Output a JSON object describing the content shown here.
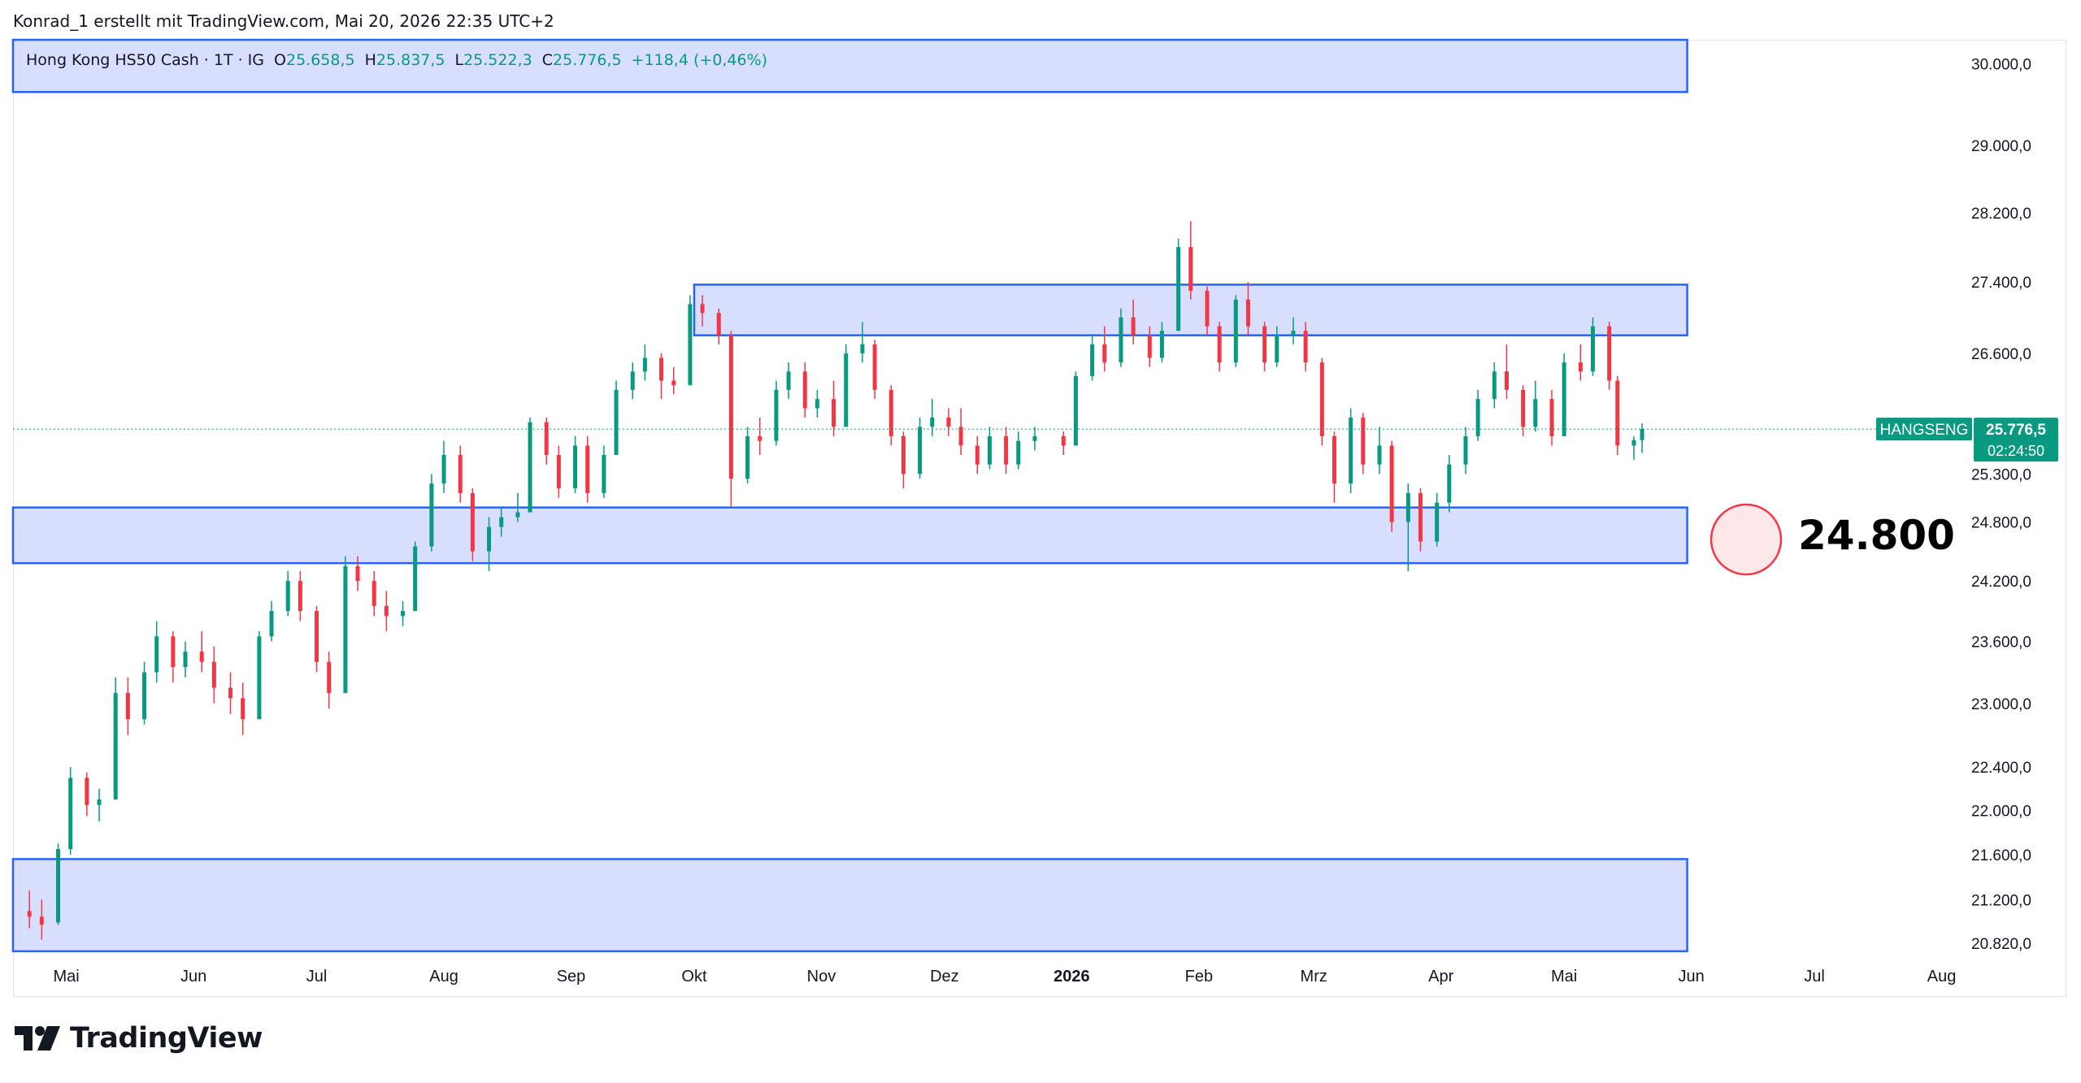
{
  "header": {
    "credit": "Konrad_1 erstellt mit TradingView.com, Mai 20, 2026 22:35 UTC+2"
  },
  "legend": {
    "symbol": "Hong Kong HS50 Cash · 1T · IG",
    "open_label": "O",
    "open": "25.658,5",
    "high_label": "H",
    "high": "25.837,5",
    "low_label": "L",
    "low": "25.522,3",
    "close_label": "C",
    "close": "25.776,5",
    "change": "+118,4 (+0,46%)"
  },
  "annotation": {
    "label": "24.800",
    "circle_color": "#f23645"
  },
  "price_tag": {
    "symbol": "HANGSENG",
    "price": "25.776,5",
    "countdown": "02:24:50",
    "color": "#089981"
  },
  "logo": {
    "text": "TradingView",
    "mark": "tv-logo-icon"
  },
  "colors": {
    "up": "#089981",
    "down": "#f23645",
    "zone_fill": "#d6dcfd",
    "zone_border": "#2962ff",
    "grid": "#f0f3fa"
  },
  "chart_data": {
    "type": "candlestick",
    "title": "",
    "symbol": "Hong Kong HS50 Cash",
    "timeframe": "1T",
    "yaxis": {
      "ticks": [
        30000,
        29000,
        28200,
        27400,
        26600,
        25300,
        24800,
        24200,
        23600,
        23000,
        22400,
        22000,
        21600,
        21200,
        20820
      ],
      "tick_labels": [
        "30.000,0",
        "29.000,0",
        "28.200,0",
        "27.400,0",
        "26.600,0",
        "25.300,0",
        "24.800,0",
        "24.200,0",
        "23.600,0",
        "23.000,0",
        "22.400,0",
        "22.000,0",
        "21.600,0",
        "21.200,0",
        "20.820,0"
      ],
      "range": [
        20700,
        30300
      ],
      "scale": "log"
    },
    "xaxis": {
      "labels": [
        "Mai",
        "Jun",
        "Jul",
        "Aug",
        "Sep",
        "Okt",
        "Nov",
        "Dez",
        "2026",
        "Feb",
        "Mrz",
        "Apr",
        "Mai",
        "Jun",
        "Jul",
        "Aug"
      ],
      "label_dates": [
        "2025-05-01",
        "2025-06-01",
        "2025-07-01",
        "2025-08-01",
        "2025-09-01",
        "2025-10-01",
        "2025-11-01",
        "2025-12-01",
        "2026-01-01",
        "2026-02-01",
        "2026-03-01",
        "2026-04-01",
        "2026-05-01",
        "2026-06-01",
        "2026-07-01",
        "2026-08-01"
      ],
      "range": [
        "2025-04-18",
        "2026-08-31"
      ],
      "bold_label": "2026"
    },
    "zones": [
      {
        "start": "2025-04-18",
        "end": "2026-05-31",
        "low": 29650,
        "high": 30300
      },
      {
        "start": "2025-10-01",
        "end": "2026-05-31",
        "low": 26800,
        "high": 27370
      },
      {
        "start": "2025-04-18",
        "end": "2026-05-31",
        "low": 24380,
        "high": 24950
      },
      {
        "start": "2025-04-18",
        "end": "2026-05-31",
        "low": 20750,
        "high": 21560
      }
    ],
    "last_price": 25776.5,
    "candles": [
      [
        "2025-04-22",
        21100,
        21280,
        20950,
        21050
      ],
      [
        "2025-04-25",
        21050,
        21200,
        20850,
        20980
      ],
      [
        "2025-04-29",
        21000,
        21700,
        20980,
        21650
      ],
      [
        "2025-05-02",
        21650,
        22400,
        21600,
        22300
      ],
      [
        "2025-05-06",
        22300,
        22350,
        21950,
        22050
      ],
      [
        "2025-05-09",
        22050,
        22200,
        21900,
        22100
      ],
      [
        "2025-05-13",
        22100,
        23250,
        22100,
        23100
      ],
      [
        "2025-05-16",
        23100,
        23250,
        22700,
        22850
      ],
      [
        "2025-05-20",
        22850,
        23400,
        22800,
        23300
      ],
      [
        "2025-05-23",
        23300,
        23800,
        23200,
        23650
      ],
      [
        "2025-05-27",
        23650,
        23700,
        23200,
        23350
      ],
      [
        "2025-05-30",
        23350,
        23600,
        23250,
        23500
      ],
      [
        "2025-06-03",
        23500,
        23700,
        23300,
        23400
      ],
      [
        "2025-06-06",
        23400,
        23550,
        23000,
        23150
      ],
      [
        "2025-06-10",
        23150,
        23300,
        22900,
        23050
      ],
      [
        "2025-06-13",
        23050,
        23200,
        22700,
        22850
      ],
      [
        "2025-06-17",
        22850,
        23700,
        22850,
        23650
      ],
      [
        "2025-06-20",
        23650,
        24000,
        23600,
        23900
      ],
      [
        "2025-06-24",
        23900,
        24300,
        23850,
        24200
      ],
      [
        "2025-06-27",
        24200,
        24300,
        23800,
        23900
      ],
      [
        "2025-07-01",
        23900,
        23950,
        23300,
        23400
      ],
      [
        "2025-07-04",
        23400,
        23500,
        22950,
        23100
      ],
      [
        "2025-07-08",
        23100,
        24450,
        23100,
        24350
      ],
      [
        "2025-07-11",
        24350,
        24450,
        24100,
        24200
      ],
      [
        "2025-07-15",
        24200,
        24300,
        23850,
        23950
      ],
      [
        "2025-07-18",
        23950,
        24100,
        23700,
        23850
      ],
      [
        "2025-07-22",
        23850,
        24000,
        23750,
        23900
      ],
      [
        "2025-07-25",
        23900,
        24600,
        23900,
        24550
      ],
      [
        "2025-07-29",
        24550,
        25300,
        24500,
        25200
      ],
      [
        "2025-08-01",
        25200,
        25650,
        25100,
        25500
      ],
      [
        "2025-08-05",
        25500,
        25600,
        25000,
        25100
      ],
      [
        "2025-08-08",
        25100,
        25150,
        24400,
        24500
      ],
      [
        "2025-08-12",
        24500,
        24850,
        24300,
        24750
      ],
      [
        "2025-08-15",
        24750,
        24950,
        24650,
        24850
      ],
      [
        "2025-08-19",
        24850,
        25100,
        24800,
        24900
      ],
      [
        "2025-08-22",
        24900,
        25900,
        24900,
        25850
      ],
      [
        "2025-08-26",
        25850,
        25900,
        25400,
        25500
      ],
      [
        "2025-08-29",
        25500,
        25600,
        25050,
        25150
      ],
      [
        "2025-09-02",
        25150,
        25700,
        25100,
        25600
      ],
      [
        "2025-09-05",
        25600,
        25700,
        25000,
        25100
      ],
      [
        "2025-09-09",
        25100,
        25600,
        25050,
        25500
      ],
      [
        "2025-09-12",
        25500,
        26300,
        25500,
        26200
      ],
      [
        "2025-09-16",
        26200,
        26500,
        26100,
        26400
      ],
      [
        "2025-09-19",
        26400,
        26700,
        26300,
        26550
      ],
      [
        "2025-09-23",
        26550,
        26600,
        26100,
        26300
      ],
      [
        "2025-09-26",
        26300,
        26450,
        26150,
        26250
      ],
      [
        "2025-09-30",
        26250,
        27250,
        26250,
        27150
      ],
      [
        "2025-10-03",
        27150,
        27250,
        26900,
        27050
      ],
      [
        "2025-10-07",
        27050,
        27100,
        26700,
        26800
      ],
      [
        "2025-10-10",
        26800,
        26850,
        24950,
        25250
      ],
      [
        "2025-10-14",
        25250,
        25800,
        25200,
        25700
      ],
      [
        "2025-10-17",
        25700,
        25900,
        25500,
        25650
      ],
      [
        "2025-10-21",
        25650,
        26300,
        25600,
        26200
      ],
      [
        "2025-10-24",
        26200,
        26500,
        26100,
        26400
      ],
      [
        "2025-10-28",
        26400,
        26500,
        25900,
        26000
      ],
      [
        "2025-10-31",
        26000,
        26200,
        25900,
        26100
      ],
      [
        "2025-11-04",
        26100,
        26300,
        25700,
        25800
      ],
      [
        "2025-11-07",
        25800,
        26700,
        25800,
        26600
      ],
      [
        "2025-11-11",
        26600,
        26950,
        26500,
        26700
      ],
      [
        "2025-11-14",
        26700,
        26750,
        26100,
        26200
      ],
      [
        "2025-11-18",
        26200,
        26250,
        25600,
        25700
      ],
      [
        "2025-11-21",
        25700,
        25750,
        25150,
        25300
      ],
      [
        "2025-11-25",
        25300,
        25900,
        25250,
        25800
      ],
      [
        "2025-11-28",
        25800,
        26100,
        25700,
        25900
      ],
      [
        "2025-12-02",
        25900,
        26000,
        25700,
        25800
      ],
      [
        "2025-12-05",
        25800,
        26000,
        25500,
        25600
      ],
      [
        "2025-12-09",
        25600,
        25700,
        25300,
        25400
      ],
      [
        "2025-12-12",
        25400,
        25800,
        25350,
        25700
      ],
      [
        "2025-12-16",
        25700,
        25800,
        25300,
        25400
      ],
      [
        "2025-12-19",
        25400,
        25750,
        25350,
        25650
      ],
      [
        "2025-12-23",
        25650,
        25800,
        25550,
        25700
      ],
      [
        "2025-12-30",
        25700,
        25750,
        25500,
        25600
      ],
      [
        "2026-01-02",
        25600,
        26400,
        25600,
        26350
      ],
      [
        "2026-01-06",
        26350,
        26800,
        26300,
        26700
      ],
      [
        "2026-01-09",
        26700,
        26900,
        26400,
        26500
      ],
      [
        "2026-01-13",
        26500,
        27100,
        26450,
        27000
      ],
      [
        "2026-01-16",
        27000,
        27200,
        26700,
        26800
      ],
      [
        "2026-01-20",
        26800,
        26900,
        26450,
        26550
      ],
      [
        "2026-01-23",
        26550,
        26950,
        26500,
        26850
      ],
      [
        "2026-01-27",
        26850,
        27900,
        26850,
        27800
      ],
      [
        "2026-01-30",
        27800,
        28100,
        27200,
        27300
      ],
      [
        "2026-02-03",
        27300,
        27350,
        26800,
        26900
      ],
      [
        "2026-02-06",
        26900,
        26950,
        26400,
        26500
      ],
      [
        "2026-02-10",
        26500,
        27250,
        26450,
        27200
      ],
      [
        "2026-02-13",
        27200,
        27400,
        26800,
        26900
      ],
      [
        "2026-02-17",
        26900,
        26950,
        26400,
        26500
      ],
      [
        "2026-02-20",
        26500,
        26900,
        26450,
        26800
      ],
      [
        "2026-02-24",
        26800,
        27000,
        26700,
        26850
      ],
      [
        "2026-02-27",
        26850,
        26950,
        26400,
        26500
      ],
      [
        "2026-03-03",
        26500,
        26550,
        25600,
        25700
      ],
      [
        "2026-03-06",
        25700,
        25750,
        25000,
        25200
      ],
      [
        "2026-03-10",
        25200,
        26000,
        25100,
        25900
      ],
      [
        "2026-03-13",
        25900,
        25950,
        25300,
        25400
      ],
      [
        "2026-03-17",
        25400,
        25800,
        25300,
        25600
      ],
      [
        "2026-03-20",
        25600,
        25650,
        24700,
        24800
      ],
      [
        "2026-03-24",
        24800,
        25200,
        24300,
        25100
      ],
      [
        "2026-03-27",
        25100,
        25150,
        24500,
        24600
      ],
      [
        "2026-03-31",
        24600,
        25100,
        24550,
        25000
      ],
      [
        "2026-04-03",
        25000,
        25500,
        24900,
        25400
      ],
      [
        "2026-04-07",
        25400,
        25800,
        25300,
        25700
      ],
      [
        "2026-04-10",
        25700,
        26200,
        25650,
        26100
      ],
      [
        "2026-04-14",
        26100,
        26500,
        26000,
        26400
      ],
      [
        "2026-04-17",
        26400,
        26700,
        26100,
        26200
      ],
      [
        "2026-04-21",
        26200,
        26250,
        25700,
        25800
      ],
      [
        "2026-04-24",
        25800,
        26300,
        25750,
        26100
      ],
      [
        "2026-04-28",
        26100,
        26200,
        25600,
        25700
      ],
      [
        "2026-05-01",
        25700,
        26600,
        25700,
        26500
      ],
      [
        "2026-05-05",
        26500,
        26700,
        26300,
        26400
      ],
      [
        "2026-05-08",
        26400,
        27000,
        26350,
        26900
      ],
      [
        "2026-05-12",
        26900,
        26950,
        26200,
        26300
      ],
      [
        "2026-05-14",
        26300,
        26350,
        25500,
        25600
      ],
      [
        "2026-05-18",
        25600,
        25700,
        25450,
        25658.5
      ],
      [
        "2026-05-20",
        25658.5,
        25837.5,
        25522.3,
        25776.5
      ]
    ]
  }
}
